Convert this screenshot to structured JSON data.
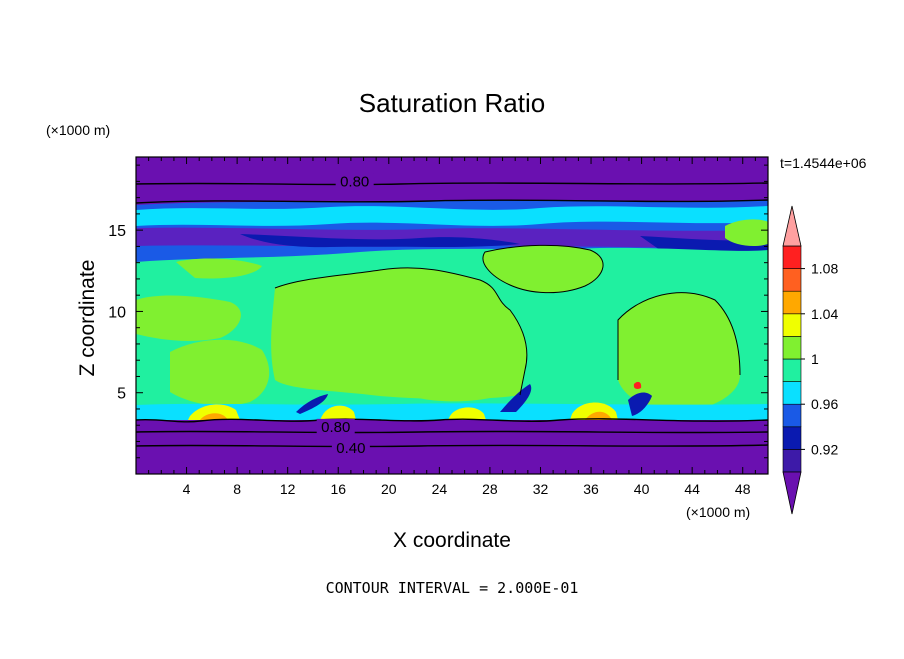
{
  "chart_data": {
    "type": "heatmap",
    "title": "Saturation Ratio",
    "xlabel": "X coordinate",
    "ylabel": "Z coordinate",
    "x_unit": "(×1000 m)",
    "y_unit": "(×1000 m)",
    "time_label": "t=1.4544e+06",
    "footer": "CONTOUR INTERVAL = 2.000E-01",
    "xlim": [
      0,
      50
    ],
    "ylim": [
      0,
      19.5
    ],
    "x_ticks": [
      4,
      8,
      12,
      16,
      20,
      24,
      28,
      32,
      36,
      40,
      44,
      48
    ],
    "y_ticks": [
      5,
      10,
      15
    ],
    "contour_labels": [
      {
        "text": "0.80",
        "x": 17.3,
        "z": 18.0
      },
      {
        "text": "0.80",
        "x": 15.8,
        "z": 2.9
      },
      {
        "text": "0.40",
        "x": 17.0,
        "z": 1.6
      }
    ],
    "colorbar": {
      "levels": [
        0.9,
        0.92,
        0.94,
        0.96,
        0.98,
        1.0,
        1.02,
        1.04,
        1.06,
        1.08,
        1.1
      ],
      "labels": [
        "0.92",
        "0.96",
        "1",
        "1.04",
        "1.08"
      ],
      "colors": [
        "#3d1aa8",
        "#0a1ab0",
        "#1a5ae6",
        "#0ae0ff",
        "#20f0a0",
        "#80f030",
        "#f0ff00",
        "#ffa800",
        "#ff6020",
        "#ff2020"
      ],
      "below_color": "#6a10b0",
      "above_color": "#ffa0a0"
    },
    "background_color": "#6a10b0"
  }
}
